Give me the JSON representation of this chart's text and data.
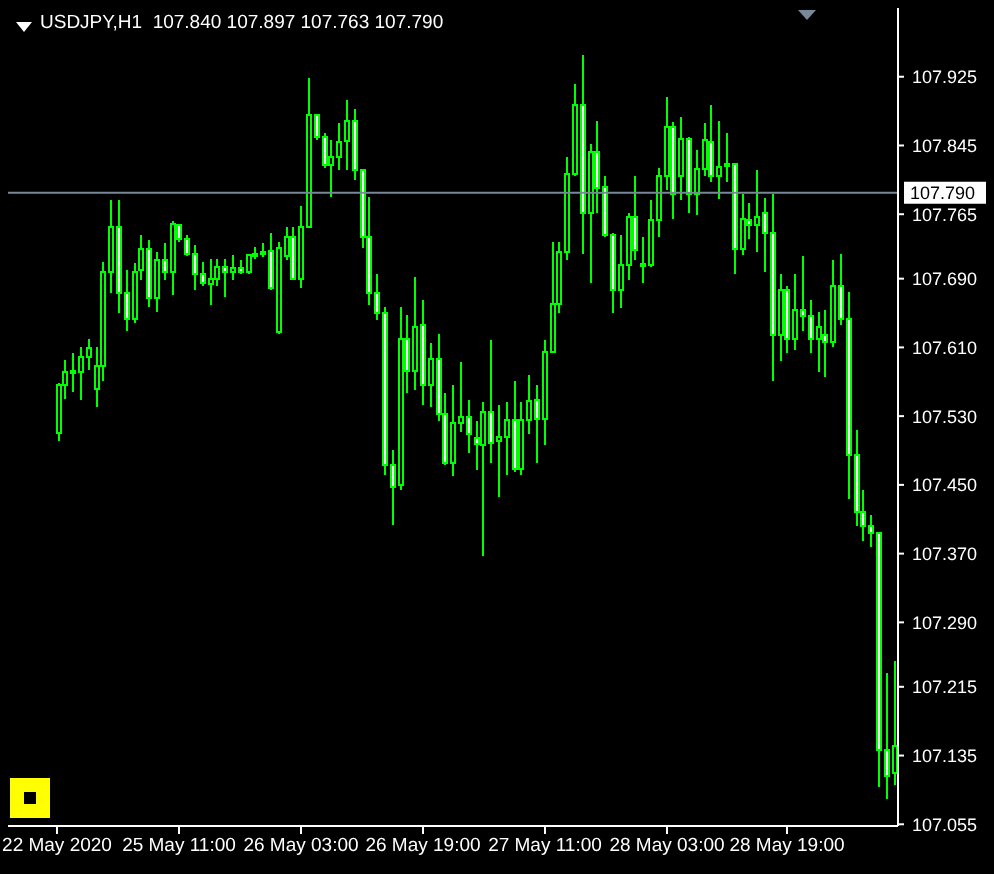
{
  "chart_data": {
    "type": "candlestick",
    "title": "USDJPY,H1  107.840 107.897 107.763 107.790",
    "categories": [
      "22 May 2020",
      null,
      null,
      null,
      null,
      null,
      null,
      null,
      null,
      null,
      null,
      null,
      null,
      null,
      null,
      null,
      "25 May 11:00",
      null,
      null,
      null,
      null,
      null,
      null,
      null,
      null,
      null,
      null,
      null,
      null,
      null,
      null,
      null,
      "26 May 03:00",
      null,
      null,
      null,
      null,
      null,
      null,
      null,
      null,
      null,
      null,
      null,
      null,
      null,
      null,
      null,
      "26 May 19:00",
      null,
      null,
      null,
      null,
      null,
      null,
      null,
      null,
      null,
      null,
      null,
      null,
      null,
      null,
      null,
      "27 May 11:00",
      null,
      null,
      null,
      null,
      null,
      null,
      null,
      null,
      null,
      null,
      null,
      null,
      null,
      null,
      null,
      "28 May 03:00",
      null,
      null,
      null,
      null,
      null,
      null,
      null,
      null,
      null,
      null,
      null,
      null,
      null,
      null,
      null,
      "28 May 19:00",
      null,
      null,
      null,
      null,
      null,
      null,
      null,
      null,
      null,
      null,
      null,
      null,
      null,
      null
    ],
    "ohlc": [
      [
        107.51,
        107.568,
        107.501,
        107.566
      ],
      [
        107.566,
        107.595,
        107.55,
        107.581
      ],
      [
        107.58,
        107.603,
        107.558,
        107.583
      ],
      [
        107.581,
        107.611,
        107.549,
        107.599
      ],
      [
        107.599,
        107.62,
        107.584,
        107.609
      ],
      [
        107.562,
        107.611,
        107.541,
        107.588
      ],
      [
        107.588,
        107.709,
        107.571,
        107.698
      ],
      [
        107.698,
        107.781,
        107.673,
        107.75
      ],
      [
        107.75,
        107.781,
        107.65,
        107.673
      ],
      [
        107.673,
        107.7,
        107.629,
        107.643
      ],
      [
        107.643,
        107.708,
        107.638,
        107.698
      ],
      [
        107.7,
        107.741,
        107.688,
        107.725
      ],
      [
        107.725,
        107.735,
        107.657,
        107.667
      ],
      [
        107.667,
        107.721,
        107.651,
        107.712
      ],
      [
        107.712,
        107.731,
        107.688,
        107.698
      ],
      [
        107.698,
        107.757,
        107.671,
        107.754
      ],
      [
        107.752,
        107.754,
        107.733,
        107.736
      ],
      [
        107.736,
        107.741,
        107.716,
        107.719
      ],
      [
        107.719,
        107.729,
        107.677,
        107.696
      ],
      [
        107.696,
        107.709,
        107.682,
        107.685
      ],
      [
        107.684,
        107.713,
        107.659,
        107.69
      ],
      [
        107.69,
        107.713,
        107.682,
        107.704
      ],
      [
        107.704,
        107.713,
        107.669,
        107.698
      ],
      [
        107.698,
        107.717,
        107.688,
        107.702
      ],
      [
        107.702,
        107.712,
        107.695,
        107.698
      ],
      [
        107.698,
        107.719,
        107.695,
        107.718
      ],
      [
        107.717,
        107.727,
        107.713,
        107.719
      ],
      [
        107.719,
        107.731,
        107.715,
        107.721
      ],
      [
        107.722,
        107.743,
        107.677,
        107.679
      ],
      [
        107.628,
        107.733,
        107.626,
        107.726
      ],
      [
        107.716,
        107.75,
        107.712,
        107.739
      ],
      [
        107.738,
        107.75,
        107.688,
        107.69
      ],
      [
        107.69,
        107.775,
        107.679,
        107.75
      ],
      [
        107.75,
        107.923,
        107.749,
        107.881
      ],
      [
        107.881,
        107.882,
        107.851,
        107.855
      ],
      [
        107.855,
        107.86,
        107.819,
        107.822
      ],
      [
        107.822,
        107.851,
        107.785,
        107.832
      ],
      [
        107.832,
        107.871,
        107.816,
        107.849
      ],
      [
        107.85,
        107.898,
        107.816,
        107.874
      ],
      [
        107.874,
        107.888,
        107.805,
        107.816
      ],
      [
        107.816,
        107.817,
        107.726,
        107.739
      ],
      [
        107.739,
        107.785,
        107.659,
        107.673
      ],
      [
        107.673,
        107.695,
        107.642,
        107.65
      ],
      [
        107.65,
        107.657,
        107.462,
        107.473
      ],
      [
        107.473,
        107.491,
        107.403,
        107.448
      ],
      [
        107.45,
        107.657,
        107.444,
        107.62
      ],
      [
        107.62,
        107.648,
        107.557,
        107.583
      ],
      [
        107.583,
        107.692,
        107.56,
        107.634
      ],
      [
        107.636,
        107.665,
        107.543,
        107.566
      ],
      [
        107.566,
        107.615,
        107.541,
        107.597
      ],
      [
        107.597,
        107.626,
        107.524,
        107.532
      ],
      [
        107.532,
        107.557,
        107.473,
        107.475
      ],
      [
        107.475,
        107.566,
        107.46,
        107.522
      ],
      [
        107.522,
        107.593,
        107.512,
        107.529
      ],
      [
        107.529,
        107.549,
        107.487,
        107.509
      ],
      [
        107.504,
        107.524,
        107.467,
        107.498
      ],
      [
        107.496,
        107.547,
        107.367,
        107.535
      ],
      [
        107.535,
        107.619,
        107.475,
        107.499
      ],
      [
        107.501,
        107.543,
        107.436,
        107.506
      ],
      [
        107.506,
        107.547,
        107.462,
        107.526
      ],
      [
        107.526,
        107.571,
        107.465,
        107.469
      ],
      [
        107.469,
        107.547,
        107.462,
        107.526
      ],
      [
        107.526,
        107.578,
        107.509,
        107.548
      ],
      [
        107.549,
        107.566,
        107.475,
        107.527
      ],
      [
        107.527,
        107.619,
        107.496,
        107.605
      ],
      [
        107.605,
        107.733,
        107.603,
        107.66
      ],
      [
        107.66,
        107.733,
        107.65,
        107.721
      ],
      [
        107.721,
        107.832,
        107.712,
        107.812
      ],
      [
        107.812,
        107.917,
        107.809,
        107.892
      ],
      [
        107.892,
        107.95,
        107.719,
        107.766
      ],
      [
        107.766,
        107.847,
        107.685,
        107.837
      ],
      [
        107.837,
        107.874,
        107.766,
        107.795
      ],
      [
        107.797,
        107.809,
        107.739,
        107.741
      ],
      [
        107.741,
        107.743,
        107.65,
        107.677
      ],
      [
        107.677,
        107.741,
        107.656,
        107.706
      ],
      [
        107.706,
        107.766,
        107.688,
        107.762
      ],
      [
        107.762,
        107.809,
        107.712,
        107.723
      ],
      [
        107.707,
        107.739,
        107.685,
        107.705
      ],
      [
        107.706,
        107.781,
        107.704,
        107.758
      ],
      [
        107.758,
        107.819,
        107.739,
        107.809
      ],
      [
        107.809,
        107.902,
        107.793,
        107.867
      ],
      [
        107.867,
        107.872,
        107.76,
        107.789
      ],
      [
        107.809,
        107.878,
        107.781,
        107.853
      ],
      [
        107.853,
        107.855,
        107.766,
        107.788
      ],
      [
        107.788,
        107.84,
        107.764,
        107.818
      ],
      [
        107.818,
        107.871,
        107.809,
        107.851
      ],
      [
        107.849,
        107.892,
        107.803,
        107.809
      ],
      [
        107.809,
        107.874,
        107.783,
        107.82
      ],
      [
        107.822,
        107.859,
        107.803,
        107.823
      ],
      [
        107.823,
        107.824,
        107.696,
        107.725
      ],
      [
        107.725,
        107.789,
        107.717,
        107.76
      ],
      [
        107.758,
        107.778,
        107.736,
        107.752
      ],
      [
        107.752,
        107.816,
        107.721,
        107.762
      ],
      [
        107.766,
        107.784,
        107.698,
        107.743
      ],
      [
        107.743,
        107.788,
        107.571,
        107.625
      ],
      [
        107.625,
        107.696,
        107.594,
        107.677
      ],
      [
        107.677,
        107.682,
        107.603,
        107.62
      ],
      [
        107.62,
        107.696,
        107.607,
        107.654
      ],
      [
        107.654,
        107.716,
        107.629,
        107.646
      ],
      [
        107.646,
        107.665,
        107.603,
        107.62
      ],
      [
        107.62,
        107.651,
        107.581,
        107.634
      ],
      [
        107.625,
        107.654,
        107.576,
        107.616
      ],
      [
        107.616,
        107.712,
        107.611,
        107.681
      ],
      [
        107.681,
        107.719,
        107.636,
        107.643
      ],
      [
        107.643,
        107.674,
        107.434,
        107.485
      ],
      [
        107.485,
        107.514,
        107.402,
        107.419
      ],
      [
        107.419,
        107.444,
        107.385,
        107.402
      ],
      [
        107.402,
        107.415,
        107.378,
        107.394
      ],
      [
        107.394,
        107.395,
        107.098,
        107.142
      ],
      [
        107.142,
        107.231,
        107.084,
        107.111
      ],
      [
        107.115,
        107.245,
        107.101,
        107.146
      ]
    ],
    "color": "#00ff00",
    "ylim": [
      107.053,
      108.005
    ],
    "yticks": [
      {
        "value": 107.925,
        "label": "107.925"
      },
      {
        "value": 107.845,
        "label": "107.845"
      },
      {
        "value": 107.765,
        "label": "107.765"
      },
      {
        "value": 107.69,
        "label": "107.690"
      },
      {
        "value": 107.61,
        "label": "107.610"
      },
      {
        "value": 107.53,
        "label": "107.530"
      },
      {
        "value": 107.45,
        "label": "107.450"
      },
      {
        "value": 107.37,
        "label": "107.370"
      },
      {
        "value": 107.29,
        "label": "107.290"
      },
      {
        "value": 107.215,
        "label": "107.215"
      },
      {
        "value": 107.135,
        "label": "107.135"
      },
      {
        "value": 107.055,
        "label": "107.055"
      }
    ],
    "ref_lines": [
      {
        "axis": "y",
        "value": 107.79,
        "label": "107.790",
        "color": "#778899"
      }
    ]
  }
}
